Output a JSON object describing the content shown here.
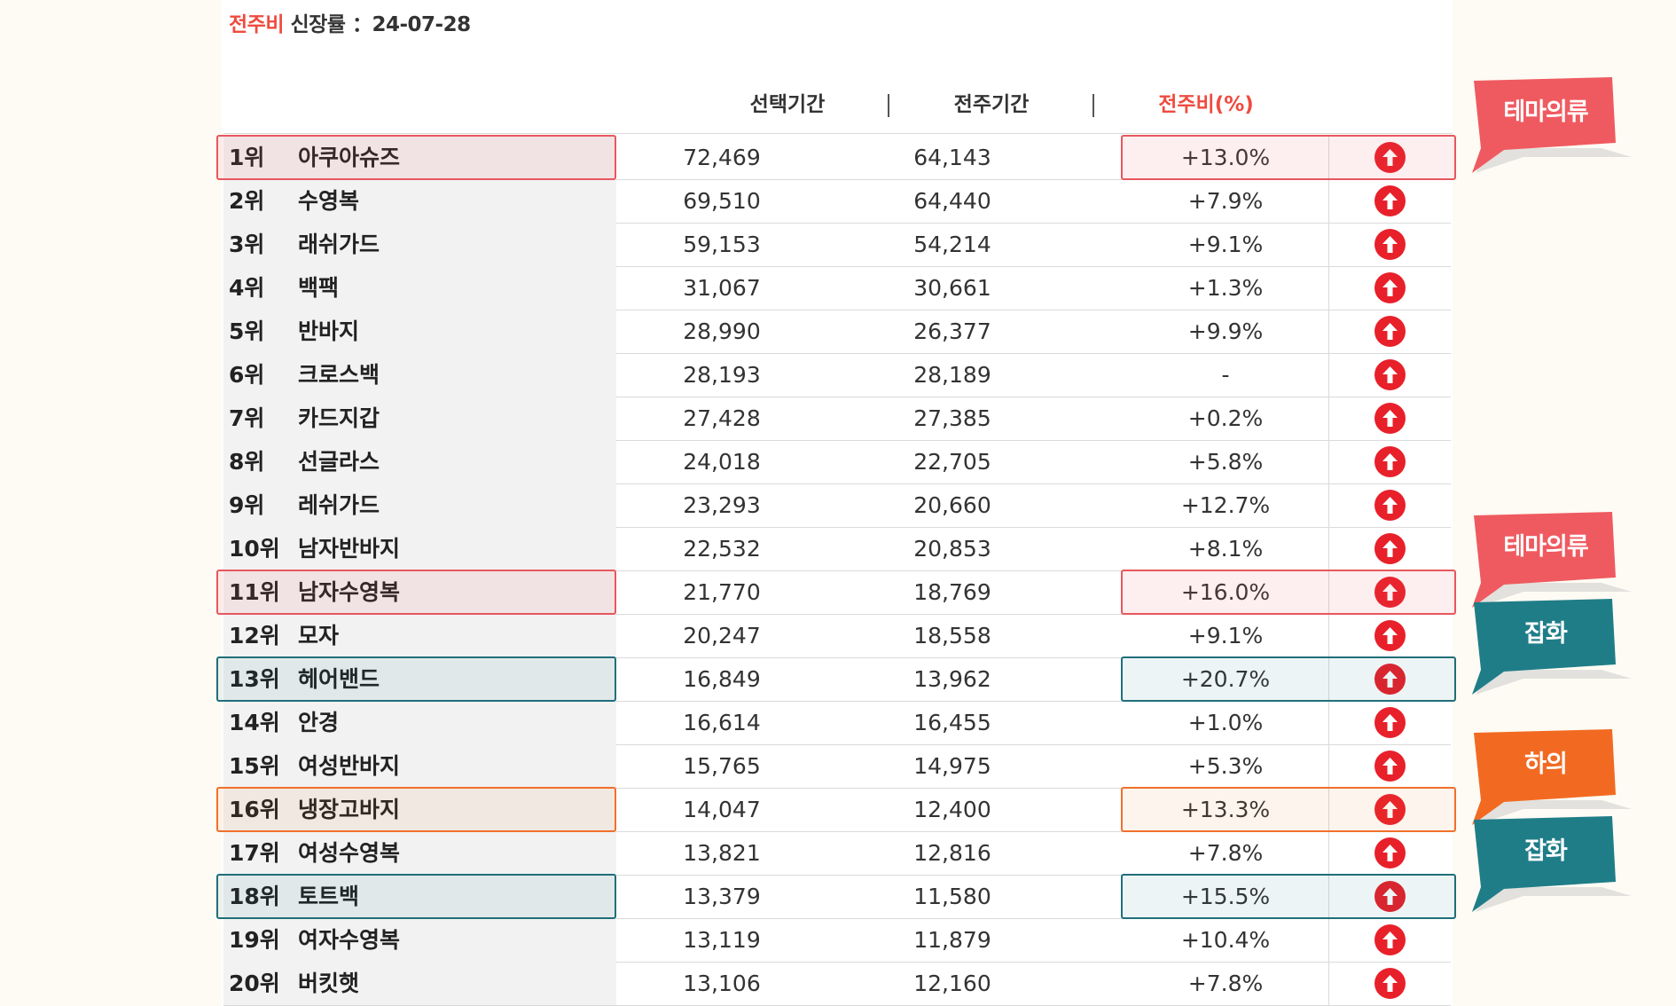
{
  "header": {
    "title_highlight": "전주비",
    "title_rest": " 신장률 ：24-07-28"
  },
  "columns": {
    "current": "선택기간",
    "previous": "전주기간",
    "change": "전주비(%)"
  },
  "rows": [
    {
      "rank": "1위",
      "name": "아쿠아슈즈",
      "current": "72,469",
      "previous": "64,143",
      "change": "+13.0%"
    },
    {
      "rank": "2위",
      "name": "수영복",
      "current": "69,510",
      "previous": "64,440",
      "change": "+7.9%"
    },
    {
      "rank": "3위",
      "name": "래쉬가드",
      "current": "59,153",
      "previous": "54,214",
      "change": "+9.1%"
    },
    {
      "rank": "4위",
      "name": "백팩",
      "current": "31,067",
      "previous": "30,661",
      "change": "+1.3%"
    },
    {
      "rank": "5위",
      "name": "반바지",
      "current": "28,990",
      "previous": "26,377",
      "change": "+9.9%"
    },
    {
      "rank": "6위",
      "name": "크로스백",
      "current": "28,193",
      "previous": "28,189",
      "change": "-"
    },
    {
      "rank": "7위",
      "name": "카드지갑",
      "current": "27,428",
      "previous": "27,385",
      "change": "+0.2%"
    },
    {
      "rank": "8위",
      "name": "선글라스",
      "current": "24,018",
      "previous": "22,705",
      "change": "+5.8%"
    },
    {
      "rank": "9위",
      "name": "레쉬가드",
      "current": "23,293",
      "previous": "20,660",
      "change": "+12.7%"
    },
    {
      "rank": "10위",
      "name": "남자반바지",
      "current": "22,532",
      "previous": "20,853",
      "change": "+8.1%"
    },
    {
      "rank": "11위",
      "name": "남자수영복",
      "current": "21,770",
      "previous": "18,769",
      "change": "+16.0%"
    },
    {
      "rank": "12위",
      "name": "모자",
      "current": "20,247",
      "previous": "18,558",
      "change": "+9.1%"
    },
    {
      "rank": "13위",
      "name": "헤어밴드",
      "current": "16,849",
      "previous": "13,962",
      "change": "+20.7%"
    },
    {
      "rank": "14위",
      "name": "안경",
      "current": "16,614",
      "previous": "16,455",
      "change": "+1.0%"
    },
    {
      "rank": "15위",
      "name": "여성반바지",
      "current": "15,765",
      "previous": "14,975",
      "change": "+5.3%"
    },
    {
      "rank": "16위",
      "name": "냉장고바지",
      "current": "14,047",
      "previous": "12,400",
      "change": "+13.3%"
    },
    {
      "rank": "17위",
      "name": "여성수영복",
      "current": "13,821",
      "previous": "12,816",
      "change": "+7.8%"
    },
    {
      "rank": "18위",
      "name": "토트백",
      "current": "13,379",
      "previous": "11,580",
      "change": "+15.5%"
    },
    {
      "rank": "19위",
      "name": "여자수영복",
      "current": "13,119",
      "previous": "11,879",
      "change": "+10.4%"
    },
    {
      "rank": "20위",
      "name": "버킷햇",
      "current": "13,106",
      "previous": "12,160",
      "change": "+7.8%"
    }
  ],
  "trend_icon": "arrow-up-circle-icon",
  "tags": [
    {
      "label": "테마의류",
      "color": "#ef5a60",
      "row": "1위"
    },
    {
      "label": "테마의류",
      "color": "#ef5a60",
      "row": "11위"
    },
    {
      "label": "잡화",
      "color": "#1f7d88",
      "row": "13위"
    },
    {
      "label": "하의",
      "color": "#f26a22",
      "row": "16위"
    },
    {
      "label": "잡화",
      "color": "#1f7d88",
      "row": "18위"
    }
  ],
  "colors": {
    "accent_red": "#ef4b3f",
    "arrow_red": "#e8202a",
    "teal": "#1f6f7a",
    "orange": "#f0702b"
  }
}
